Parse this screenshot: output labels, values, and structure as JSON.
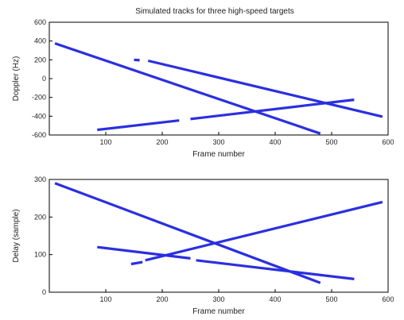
{
  "figure_title": "Simulated tracks for three high-speed targets",
  "colors": {
    "line": "#2b2fe0",
    "axis": "#000000",
    "background": "#ffffff"
  },
  "chart_data": [
    {
      "type": "line",
      "title": "Simulated tracks for three high-speed targets",
      "xlabel": "Frame number",
      "ylabel": "Doppler (Hz)",
      "xlim": [
        0,
        600
      ],
      "ylim": [
        -600,
        600
      ],
      "xticks": [
        100,
        200,
        300,
        400,
        500,
        600
      ],
      "yticks": [
        -600,
        -400,
        -200,
        0,
        200,
        400,
        600
      ],
      "grid": false,
      "series": [
        {
          "segments": [
            {
              "x": [
                10,
                480
              ],
              "y": [
                375,
                -585
              ]
            }
          ]
        },
        {
          "segments": [
            {
              "x": [
                150,
                160
              ],
              "y": [
                200,
                195
              ]
            },
            {
              "x": [
                175,
                590
              ],
              "y": [
                190,
                -405
              ]
            }
          ]
        },
        {
          "segments": [
            {
              "x": [
                85,
                230
              ],
              "y": [
                -545,
                -445
              ]
            },
            {
              "x": [
                250,
                540
              ],
              "y": [
                -430,
                -225
              ]
            }
          ]
        }
      ]
    },
    {
      "type": "line",
      "title": "",
      "xlabel": "Frame number",
      "ylabel": "Delay (sample)",
      "xlim": [
        0,
        600
      ],
      "ylim": [
        0,
        300
      ],
      "xticks": [
        100,
        200,
        300,
        400,
        500,
        600
      ],
      "yticks": [
        0,
        100,
        200,
        300
      ],
      "grid": false,
      "series": [
        {
          "segments": [
            {
              "x": [
                10,
                480
              ],
              "y": [
                290,
                25
              ]
            }
          ]
        },
        {
          "segments": [
            {
              "x": [
                145,
                165
              ],
              "y": [
                75,
                80
              ]
            },
            {
              "x": [
                170,
                590
              ],
              "y": [
                85,
                240
              ]
            }
          ]
        },
        {
          "segments": [
            {
              "x": [
                85,
                250
              ],
              "y": [
                120,
                90
              ]
            },
            {
              "x": [
                260,
                540
              ],
              "y": [
                85,
                35
              ]
            }
          ]
        }
      ]
    }
  ]
}
